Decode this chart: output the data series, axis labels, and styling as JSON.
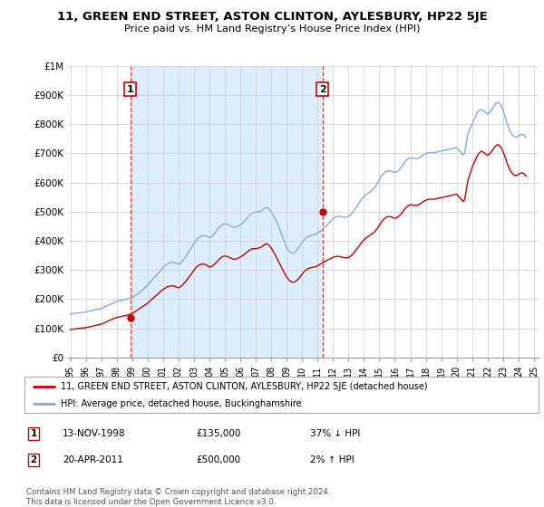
{
  "title": "11, GREEN END STREET, ASTON CLINTON, AYLESBURY, HP22 5JE",
  "subtitle": "Price paid vs. HM Land Registry’s House Price Index (HPI)",
  "legend_line1": "11, GREEN END STREET, ASTON CLINTON, AYLESBURY, HP22 5JE (detached house)",
  "legend_line2": "HPI: Average price, detached house, Buckinghamshire",
  "footer": "Contains HM Land Registry data © Crown copyright and database right 2024.\nThis data is licensed under the Open Government Licence v3.0.",
  "sale1_date": "13-NOV-1998",
  "sale1_price": "£135,000",
  "sale1_hpi": "37% ↓ HPI",
  "sale2_date": "20-APR-2011",
  "sale2_price": "£500,000",
  "sale2_hpi": "2% ↑ HPI",
  "red_color": "#cc0000",
  "blue_color": "#88aadd",
  "vline_color": "#cc4444",
  "shade_color": "#ddeeff",
  "grid_color": "#cccccc",
  "background_color": "#ffffff",
  "ylim_max": 1000000,
  "xlim_start": 1995.0,
  "xlim_end": 2025.3,
  "sale1_x": 1998.87,
  "sale1_y": 135000,
  "sale2_x": 2011.31,
  "sale2_y": 500000,
  "yticks": [
    0,
    100000,
    200000,
    300000,
    400000,
    500000,
    600000,
    700000,
    800000,
    900000,
    1000000
  ],
  "ytick_labels": [
    "£0",
    "£100K",
    "£200K",
    "£300K",
    "£400K",
    "£500K",
    "£600K",
    "£700K",
    "£800K",
    "£900K",
    "£1M"
  ],
  "xtick_labels": [
    "95",
    "96",
    "97",
    "98",
    "99",
    "00",
    "01",
    "02",
    "03",
    "04",
    "05",
    "06",
    "07",
    "08",
    "09",
    "10",
    "11",
    "12",
    "13",
    "14",
    "15",
    "16",
    "17",
    "18",
    "19",
    "20",
    "21",
    "22",
    "23",
    "24",
    "25"
  ],
  "hpi_t": [
    1995.0,
    1995.083,
    1995.167,
    1995.25,
    1995.333,
    1995.417,
    1995.5,
    1995.583,
    1995.667,
    1995.75,
    1995.833,
    1995.917,
    1996.0,
    1996.083,
    1996.167,
    1996.25,
    1996.333,
    1996.417,
    1996.5,
    1996.583,
    1996.667,
    1996.75,
    1996.833,
    1996.917,
    1997.0,
    1997.083,
    1997.167,
    1997.25,
    1997.333,
    1997.417,
    1997.5,
    1997.583,
    1997.667,
    1997.75,
    1997.833,
    1997.917,
    1998.0,
    1998.083,
    1998.167,
    1998.25,
    1998.333,
    1998.417,
    1998.5,
    1998.583,
    1998.667,
    1998.75,
    1998.833,
    1998.917,
    1999.0,
    1999.083,
    1999.167,
    1999.25,
    1999.333,
    1999.417,
    1999.5,
    1999.583,
    1999.667,
    1999.75,
    1999.833,
    1999.917,
    2000.0,
    2000.083,
    2000.167,
    2000.25,
    2000.333,
    2000.417,
    2000.5,
    2000.583,
    2000.667,
    2000.75,
    2000.833,
    2000.917,
    2001.0,
    2001.083,
    2001.167,
    2001.25,
    2001.333,
    2001.417,
    2001.5,
    2001.583,
    2001.667,
    2001.75,
    2001.833,
    2001.917,
    2002.0,
    2002.083,
    2002.167,
    2002.25,
    2002.333,
    2002.417,
    2002.5,
    2002.583,
    2002.667,
    2002.75,
    2002.833,
    2002.917,
    2003.0,
    2003.083,
    2003.167,
    2003.25,
    2003.333,
    2003.417,
    2003.5,
    2003.583,
    2003.667,
    2003.75,
    2003.833,
    2003.917,
    2004.0,
    2004.083,
    2004.167,
    2004.25,
    2004.333,
    2004.417,
    2004.5,
    2004.583,
    2004.667,
    2004.75,
    2004.833,
    2004.917,
    2005.0,
    2005.083,
    2005.167,
    2005.25,
    2005.333,
    2005.417,
    2005.5,
    2005.583,
    2005.667,
    2005.75,
    2005.833,
    2005.917,
    2006.0,
    2006.083,
    2006.167,
    2006.25,
    2006.333,
    2006.417,
    2006.5,
    2006.583,
    2006.667,
    2006.75,
    2006.833,
    2006.917,
    2007.0,
    2007.083,
    2007.167,
    2007.25,
    2007.333,
    2007.417,
    2007.5,
    2007.583,
    2007.667,
    2007.75,
    2007.833,
    2007.917,
    2008.0,
    2008.083,
    2008.167,
    2008.25,
    2008.333,
    2008.417,
    2008.5,
    2008.583,
    2008.667,
    2008.75,
    2008.833,
    2008.917,
    2009.0,
    2009.083,
    2009.167,
    2009.25,
    2009.333,
    2009.417,
    2009.5,
    2009.583,
    2009.667,
    2009.75,
    2009.833,
    2009.917,
    2010.0,
    2010.083,
    2010.167,
    2010.25,
    2010.333,
    2010.417,
    2010.5,
    2010.583,
    2010.667,
    2010.75,
    2010.833,
    2010.917,
    2011.0,
    2011.083,
    2011.167,
    2011.25,
    2011.333,
    2011.417,
    2011.5,
    2011.583,
    2011.667,
    2011.75,
    2011.833,
    2011.917,
    2012.0,
    2012.083,
    2012.167,
    2012.25,
    2012.333,
    2012.417,
    2012.5,
    2012.583,
    2012.667,
    2012.75,
    2012.833,
    2012.917,
    2013.0,
    2013.083,
    2013.167,
    2013.25,
    2013.333,
    2013.417,
    2013.5,
    2013.583,
    2013.667,
    2013.75,
    2013.833,
    2013.917,
    2014.0,
    2014.083,
    2014.167,
    2014.25,
    2014.333,
    2014.417,
    2014.5,
    2014.583,
    2014.667,
    2014.75,
    2014.833,
    2014.917,
    2015.0,
    2015.083,
    2015.167,
    2015.25,
    2015.333,
    2015.417,
    2015.5,
    2015.583,
    2015.667,
    2015.75,
    2015.833,
    2015.917,
    2016.0,
    2016.083,
    2016.167,
    2016.25,
    2016.333,
    2016.417,
    2016.5,
    2016.583,
    2016.667,
    2016.75,
    2016.833,
    2016.917,
    2017.0,
    2017.083,
    2017.167,
    2017.25,
    2017.333,
    2017.417,
    2017.5,
    2017.583,
    2017.667,
    2017.75,
    2017.833,
    2017.917,
    2018.0,
    2018.083,
    2018.167,
    2018.25,
    2018.333,
    2018.417,
    2018.5,
    2018.583,
    2018.667,
    2018.75,
    2018.833,
    2018.917,
    2019.0,
    2019.083,
    2019.167,
    2019.25,
    2019.333,
    2019.417,
    2019.5,
    2019.583,
    2019.667,
    2019.75,
    2019.833,
    2019.917,
    2020.0,
    2020.083,
    2020.167,
    2020.25,
    2020.333,
    2020.417,
    2020.5,
    2020.583,
    2020.667,
    2020.75,
    2020.833,
    2020.917,
    2021.0,
    2021.083,
    2021.167,
    2021.25,
    2021.333,
    2021.417,
    2021.5,
    2021.583,
    2021.667,
    2021.75,
    2021.833,
    2021.917,
    2022.0,
    2022.083,
    2022.167,
    2022.25,
    2022.333,
    2022.417,
    2022.5,
    2022.583,
    2022.667,
    2022.75,
    2022.833,
    2022.917,
    2023.0,
    2023.083,
    2023.167,
    2023.25,
    2023.333,
    2023.417,
    2023.5,
    2023.583,
    2023.667,
    2023.75,
    2023.833,
    2023.917,
    2024.0,
    2024.083,
    2024.167,
    2024.25,
    2024.333,
    2024.417,
    2024.5
  ],
  "hpi_v": [
    148000,
    149000,
    150000,
    151000,
    151500,
    152000,
    152500,
    153000,
    153500,
    154000,
    154500,
    155000,
    156000,
    157000,
    158000,
    159000,
    160000,
    161000,
    162000,
    163000,
    164000,
    165000,
    166000,
    167000,
    168000,
    170000,
    172000,
    174000,
    176000,
    178000,
    180000,
    182000,
    184000,
    186000,
    188000,
    190000,
    192000,
    193000,
    194000,
    195000,
    196000,
    197000,
    198000,
    199000,
    200000,
    201000,
    202000,
    203000,
    205000,
    208000,
    211000,
    214000,
    217000,
    220000,
    223000,
    227000,
    231000,
    235000,
    239000,
    243000,
    248000,
    253000,
    258000,
    263000,
    268000,
    273000,
    278000,
    283000,
    288000,
    293000,
    298000,
    303000,
    308000,
    312000,
    316000,
    320000,
    322000,
    324000,
    326000,
    327000,
    326000,
    325000,
    323000,
    321000,
    320000,
    322000,
    325000,
    330000,
    336000,
    342000,
    348000,
    355000,
    362000,
    369000,
    376000,
    383000,
    390000,
    397000,
    403000,
    408000,
    412000,
    415000,
    417000,
    418000,
    418000,
    417000,
    415000,
    413000,
    411000,
    413000,
    416000,
    420000,
    425000,
    431000,
    437000,
    443000,
    448000,
    452000,
    455000,
    457000,
    458000,
    457000,
    456000,
    454000,
    452000,
    450000,
    448000,
    447000,
    447000,
    448000,
    450000,
    452000,
    455000,
    458000,
    462000,
    467000,
    472000,
    477000,
    482000,
    487000,
    491000,
    494000,
    496000,
    497000,
    498000,
    499000,
    500000,
    501000,
    503000,
    506000,
    509000,
    512000,
    514000,
    513000,
    510000,
    505000,
    499000,
    492000,
    485000,
    477000,
    468000,
    458000,
    447000,
    435000,
    423000,
    411000,
    399000,
    388000,
    378000,
    370000,
    364000,
    360000,
    358000,
    358000,
    360000,
    364000,
    369000,
    375000,
    382000,
    389000,
    395000,
    401000,
    406000,
    410000,
    413000,
    415000,
    417000,
    418000,
    419000,
    420000,
    422000,
    424000,
    427000,
    430000,
    433000,
    436000,
    440000,
    444000,
    448000,
    452000,
    457000,
    462000,
    467000,
    472000,
    476000,
    479000,
    481000,
    483000,
    484000,
    484000,
    483000,
    482000,
    481000,
    481000,
    481000,
    482000,
    484000,
    487000,
    491000,
    496000,
    502000,
    508000,
    515000,
    522000,
    529000,
    536000,
    542000,
    547000,
    552000,
    556000,
    560000,
    563000,
    566000,
    569000,
    572000,
    576000,
    581000,
    587000,
    594000,
    602000,
    610000,
    617000,
    624000,
    629000,
    634000,
    637000,
    639000,
    640000,
    640000,
    639000,
    638000,
    636000,
    635000,
    636000,
    638000,
    641000,
    646000,
    652000,
    659000,
    666000,
    672000,
    677000,
    681000,
    683000,
    684000,
    684000,
    683000,
    682000,
    682000,
    682000,
    683000,
    685000,
    688000,
    691000,
    694000,
    697000,
    699000,
    701000,
    702000,
    703000,
    703000,
    703000,
    703000,
    703000,
    704000,
    705000,
    706000,
    707000,
    708000,
    709000,
    710000,
    711000,
    712000,
    713000,
    714000,
    715000,
    716000,
    717000,
    718000,
    719000,
    720000,
    715000,
    710000,
    705000,
    700000,
    695000,
    700000,
    720000,
    750000,
    770000,
    780000,
    790000,
    800000,
    810000,
    820000,
    830000,
    840000,
    845000,
    848000,
    850000,
    848000,
    845000,
    842000,
    838000,
    835000,
    838000,
    842000,
    848000,
    855000,
    862000,
    868000,
    873000,
    875000,
    873000,
    868000,
    860000,
    848000,
    835000,
    820000,
    805000,
    792000,
    781000,
    772000,
    765000,
    760000,
    757000,
    756000,
    757000,
    760000,
    763000,
    765000,
    765000,
    763000,
    759000,
    754000
  ],
  "red_t": [
    1995.0,
    1995.083,
    1995.167,
    1995.25,
    1995.333,
    1995.417,
    1995.5,
    1995.583,
    1995.667,
    1995.75,
    1995.833,
    1995.917,
    1996.0,
    1996.083,
    1996.167,
    1996.25,
    1996.333,
    1996.417,
    1996.5,
    1996.583,
    1996.667,
    1996.75,
    1996.833,
    1996.917,
    1997.0,
    1997.083,
    1997.167,
    1997.25,
    1997.333,
    1997.417,
    1997.5,
    1997.583,
    1997.667,
    1997.75,
    1997.833,
    1997.917,
    1998.0,
    1998.083,
    1998.167,
    1998.25,
    1998.333,
    1998.417,
    1998.5,
    1998.583,
    1998.667,
    1998.75,
    1998.833,
    1998.917,
    1999.0,
    1999.083,
    1999.167,
    1999.25,
    1999.333,
    1999.417,
    1999.5,
    1999.583,
    1999.667,
    1999.75,
    1999.833,
    1999.917,
    2000.0,
    2000.083,
    2000.167,
    2000.25,
    2000.333,
    2000.417,
    2000.5,
    2000.583,
    2000.667,
    2000.75,
    2000.833,
    2000.917,
    2001.0,
    2001.083,
    2001.167,
    2001.25,
    2001.333,
    2001.417,
    2001.5,
    2001.583,
    2001.667,
    2001.75,
    2001.833,
    2001.917,
    2002.0,
    2002.083,
    2002.167,
    2002.25,
    2002.333,
    2002.417,
    2002.5,
    2002.583,
    2002.667,
    2002.75,
    2002.833,
    2002.917,
    2003.0,
    2003.083,
    2003.167,
    2003.25,
    2003.333,
    2003.417,
    2003.5,
    2003.583,
    2003.667,
    2003.75,
    2003.833,
    2003.917,
    2004.0,
    2004.083,
    2004.167,
    2004.25,
    2004.333,
    2004.417,
    2004.5,
    2004.583,
    2004.667,
    2004.75,
    2004.833,
    2004.917,
    2005.0,
    2005.083,
    2005.167,
    2005.25,
    2005.333,
    2005.417,
    2005.5,
    2005.583,
    2005.667,
    2005.75,
    2005.833,
    2005.917,
    2006.0,
    2006.083,
    2006.167,
    2006.25,
    2006.333,
    2006.417,
    2006.5,
    2006.583,
    2006.667,
    2006.75,
    2006.833,
    2006.917,
    2007.0,
    2007.083,
    2007.167,
    2007.25,
    2007.333,
    2007.417,
    2007.5,
    2007.583,
    2007.667,
    2007.75,
    2007.833,
    2007.917,
    2008.0,
    2008.083,
    2008.167,
    2008.25,
    2008.333,
    2008.417,
    2008.5,
    2008.583,
    2008.667,
    2008.75,
    2008.833,
    2008.917,
    2009.0,
    2009.083,
    2009.167,
    2009.25,
    2009.333,
    2009.417,
    2009.5,
    2009.583,
    2009.667,
    2009.75,
    2009.833,
    2009.917,
    2010.0,
    2010.083,
    2010.167,
    2010.25,
    2010.333,
    2010.417,
    2010.5,
    2010.583,
    2010.667,
    2010.75,
    2010.833,
    2010.917,
    2011.0,
    2011.083,
    2011.167,
    2011.25,
    2011.333,
    2011.417,
    2011.5,
    2011.583,
    2011.667,
    2011.75,
    2011.833,
    2011.917,
    2012.0,
    2012.083,
    2012.167,
    2012.25,
    2012.333,
    2012.417,
    2012.5,
    2012.583,
    2012.667,
    2012.75,
    2012.833,
    2012.917,
    2013.0,
    2013.083,
    2013.167,
    2013.25,
    2013.333,
    2013.417,
    2013.5,
    2013.583,
    2013.667,
    2013.75,
    2013.833,
    2013.917,
    2014.0,
    2014.083,
    2014.167,
    2014.25,
    2014.333,
    2014.417,
    2014.5,
    2014.583,
    2014.667,
    2014.75,
    2014.833,
    2014.917,
    2015.0,
    2015.083,
    2015.167,
    2015.25,
    2015.333,
    2015.417,
    2015.5,
    2015.583,
    2015.667,
    2015.75,
    2015.833,
    2015.917,
    2016.0,
    2016.083,
    2016.167,
    2016.25,
    2016.333,
    2016.417,
    2016.5,
    2016.583,
    2016.667,
    2016.75,
    2016.833,
    2016.917,
    2017.0,
    2017.083,
    2017.167,
    2017.25,
    2017.333,
    2017.417,
    2017.5,
    2017.583,
    2017.667,
    2017.75,
    2017.833,
    2017.917,
    2018.0,
    2018.083,
    2018.167,
    2018.25,
    2018.333,
    2018.417,
    2018.5,
    2018.583,
    2018.667,
    2018.75,
    2018.833,
    2018.917,
    2019.0,
    2019.083,
    2019.167,
    2019.25,
    2019.333,
    2019.417,
    2019.5,
    2019.583,
    2019.667,
    2019.75,
    2019.833,
    2019.917,
    2020.0,
    2020.083,
    2020.167,
    2020.25,
    2020.333,
    2020.417,
    2020.5,
    2020.583,
    2020.667,
    2020.75,
    2020.833,
    2020.917,
    2021.0,
    2021.083,
    2021.167,
    2021.25,
    2021.333,
    2021.417,
    2021.5,
    2021.583,
    2021.667,
    2021.75,
    2021.833,
    2021.917,
    2022.0,
    2022.083,
    2022.167,
    2022.25,
    2022.333,
    2022.417,
    2022.5,
    2022.583,
    2022.667,
    2022.75,
    2022.833,
    2022.917,
    2023.0,
    2023.083,
    2023.167,
    2023.25,
    2023.333,
    2023.417,
    2023.5,
    2023.583,
    2023.667,
    2023.75,
    2023.833,
    2023.917,
    2024.0,
    2024.083,
    2024.167,
    2024.25,
    2024.333,
    2024.417,
    2024.5
  ],
  "red_v": [
    95000,
    96000,
    97000,
    97500,
    98000,
    98500,
    99000,
    99500,
    100000,
    100500,
    101000,
    101500,
    102000,
    103000,
    104000,
    105000,
    106000,
    107000,
    108000,
    109000,
    110000,
    111000,
    112000,
    113000,
    114000,
    116000,
    118000,
    120000,
    122000,
    124000,
    126000,
    128000,
    130000,
    132000,
    134000,
    136000,
    137000,
    138000,
    139000,
    140000,
    141000,
    142000,
    143000,
    144000,
    145000,
    146000,
    147000,
    148000,
    150000,
    153000,
    156000,
    159000,
    162000,
    165000,
    168000,
    171000,
    174000,
    177000,
    180000,
    183000,
    186000,
    190000,
    194000,
    198000,
    202000,
    206000,
    210000,
    214000,
    218000,
    222000,
    226000,
    230000,
    233000,
    236000,
    239000,
    242000,
    243000,
    244000,
    245000,
    245500,
    245000,
    244000,
    242000,
    240000,
    239000,
    241000,
    244000,
    248000,
    253000,
    258000,
    263000,
    269000,
    275000,
    281000,
    287000,
    293000,
    299000,
    305000,
    310000,
    314000,
    317000,
    319000,
    320000,
    320500,
    320000,
    318500,
    316000,
    313000,
    310000,
    311000,
    313000,
    316000,
    320000,
    324000,
    329000,
    334000,
    338000,
    342000,
    345000,
    347000,
    348000,
    347000,
    346000,
    344000,
    342000,
    340000,
    338000,
    337000,
    337000,
    338000,
    340000,
    342000,
    344000,
    347000,
    350000,
    353000,
    357000,
    361000,
    364000,
    367000,
    370000,
    372000,
    373000,
    373000,
    373000,
    374000,
    375000,
    376000,
    378000,
    381000,
    384000,
    387000,
    390000,
    389000,
    386000,
    381000,
    375000,
    368000,
    360000,
    352000,
    344000,
    335000,
    326000,
    317000,
    308000,
    299000,
    291000,
    283000,
    276000,
    270000,
    265000,
    261000,
    259000,
    258000,
    259000,
    261000,
    265000,
    269000,
    274000,
    280000,
    285000,
    291000,
    296000,
    300000,
    303000,
    305000,
    307000,
    308000,
    309000,
    310000,
    311000,
    312000,
    315000,
    317000,
    320000,
    322000,
    325000,
    328000,
    330000,
    332000,
    335000,
    337000,
    339000,
    341000,
    343000,
    345000,
    346000,
    347000,
    347000,
    346000,
    345000,
    344000,
    343000,
    342000,
    342000,
    342000,
    343000,
    346000,
    349000,
    353000,
    358000,
    363000,
    369000,
    375000,
    381000,
    387000,
    393000,
    398000,
    403000,
    407000,
    411000,
    414000,
    417000,
    420000,
    423000,
    426000,
    430000,
    435000,
    440000,
    447000,
    454000,
    460000,
    467000,
    472000,
    477000,
    480000,
    482000,
    483000,
    483000,
    482000,
    481000,
    479000,
    478000,
    479000,
    481000,
    484000,
    488000,
    493000,
    499000,
    505000,
    510000,
    515000,
    519000,
    522000,
    524000,
    524000,
    523000,
    522000,
    522000,
    522000,
    523000,
    525000,
    528000,
    531000,
    534000,
    537000,
    539000,
    541000,
    542000,
    543000,
    543000,
    543000,
    543000,
    543000,
    544000,
    545000,
    546000,
    547000,
    548000,
    549000,
    550000,
    551000,
    552000,
    553000,
    554000,
    555000,
    556000,
    557000,
    558000,
    559000,
    560000,
    555000,
    550000,
    545000,
    540000,
    535000,
    540000,
    560000,
    590000,
    610000,
    625000,
    638000,
    652000,
    662000,
    672000,
    682000,
    692000,
    698000,
    703000,
    707000,
    706000,
    703000,
    700000,
    696000,
    693000,
    696000,
    700000,
    706000,
    712000,
    719000,
    724000,
    728000,
    730000,
    728000,
    723000,
    716000,
    707000,
    695000,
    682000,
    669000,
    657000,
    647000,
    639000,
    633000,
    628000,
    625000,
    624000,
    625000,
    628000,
    631000,
    633000,
    633000,
    631000,
    627000,
    622000
  ]
}
